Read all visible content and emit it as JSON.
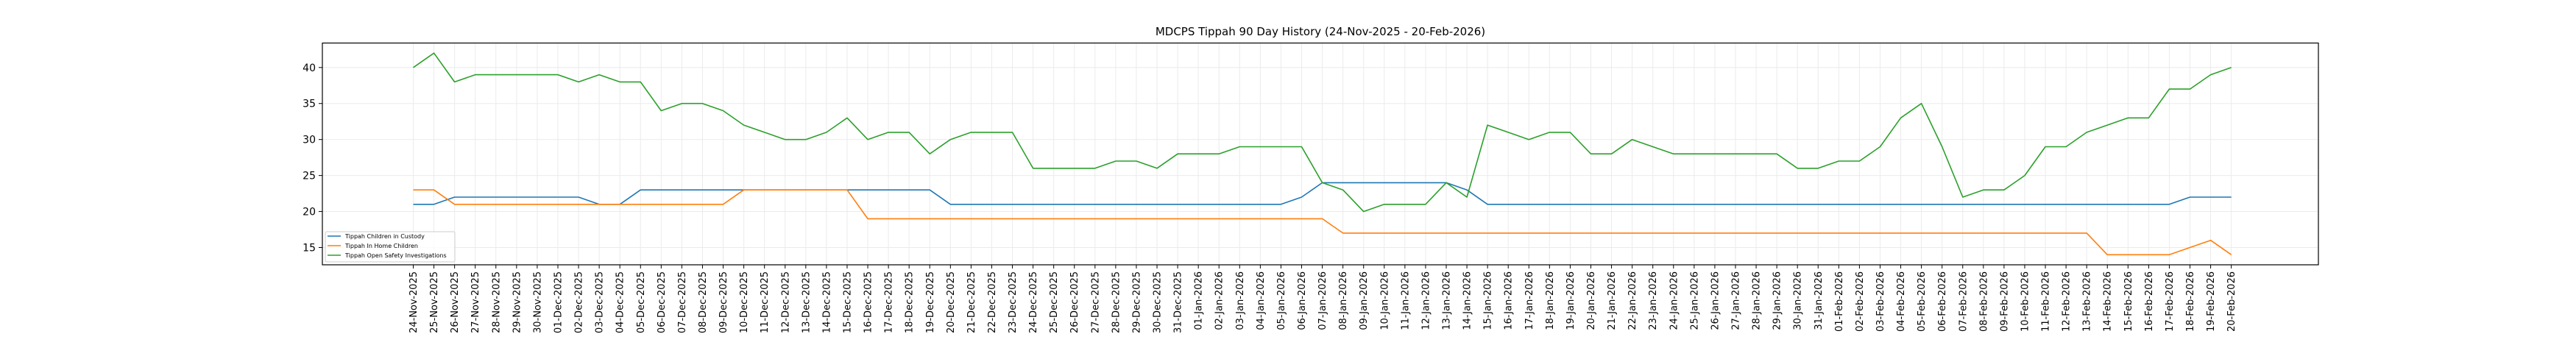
{
  "chart_data": {
    "type": "line",
    "title": "MDCPS Tippah 90 Day History (24-Nov-2025 - 20-Feb-2026)",
    "xlabel": "",
    "ylabel": "",
    "ylim": [
      12.6,
      43.4
    ],
    "yticks": [
      15,
      20,
      25,
      30,
      35,
      40
    ],
    "grid": true,
    "legend_position": "lower-left",
    "x": [
      "24-Nov-2025",
      "25-Nov-2025",
      "26-Nov-2025",
      "27-Nov-2025",
      "28-Nov-2025",
      "29-Nov-2025",
      "30-Nov-2025",
      "01-Dec-2025",
      "02-Dec-2025",
      "03-Dec-2025",
      "04-Dec-2025",
      "05-Dec-2025",
      "06-Dec-2025",
      "07-Dec-2025",
      "08-Dec-2025",
      "09-Dec-2025",
      "10-Dec-2025",
      "11-Dec-2025",
      "12-Dec-2025",
      "13-Dec-2025",
      "14-Dec-2025",
      "15-Dec-2025",
      "16-Dec-2025",
      "17-Dec-2025",
      "18-Dec-2025",
      "19-Dec-2025",
      "20-Dec-2025",
      "21-Dec-2025",
      "22-Dec-2025",
      "23-Dec-2025",
      "24-Dec-2025",
      "25-Dec-2025",
      "26-Dec-2025",
      "27-Dec-2025",
      "28-Dec-2025",
      "29-Dec-2025",
      "30-Dec-2025",
      "31-Dec-2025",
      "01-Jan-2026",
      "02-Jan-2026",
      "03-Jan-2026",
      "04-Jan-2026",
      "05-Jan-2026",
      "06-Jan-2026",
      "07-Jan-2026",
      "08-Jan-2026",
      "09-Jan-2026",
      "10-Jan-2026",
      "11-Jan-2026",
      "12-Jan-2026",
      "13-Jan-2026",
      "14-Jan-2026",
      "15-Jan-2026",
      "16-Jan-2026",
      "17-Jan-2026",
      "18-Jan-2026",
      "19-Jan-2026",
      "20-Jan-2026",
      "21-Jan-2026",
      "22-Jan-2026",
      "23-Jan-2026",
      "24-Jan-2026",
      "25-Jan-2026",
      "26-Jan-2026",
      "27-Jan-2026",
      "28-Jan-2026",
      "29-Jan-2026",
      "30-Jan-2026",
      "31-Jan-2026",
      "01-Feb-2026",
      "02-Feb-2026",
      "03-Feb-2026",
      "04-Feb-2026",
      "05-Feb-2026",
      "06-Feb-2026",
      "07-Feb-2026",
      "08-Feb-2026",
      "09-Feb-2026",
      "10-Feb-2026",
      "11-Feb-2026",
      "12-Feb-2026",
      "13-Feb-2026",
      "14-Feb-2026",
      "15-Feb-2026",
      "16-Feb-2026",
      "17-Feb-2026",
      "18-Feb-2026",
      "19-Feb-2026",
      "20-Feb-2026"
    ],
    "series": [
      {
        "name": "Tippah Children in Custody",
        "color": "#1f77b4",
        "values": [
          21,
          21,
          22,
          22,
          22,
          22,
          22,
          22,
          22,
          21,
          21,
          23,
          23,
          23,
          23,
          23,
          23,
          23,
          23,
          23,
          23,
          23,
          23,
          23,
          23,
          23,
          21,
          21,
          21,
          21,
          21,
          21,
          21,
          21,
          21,
          21,
          21,
          21,
          21,
          21,
          21,
          21,
          21,
          22,
          24,
          24,
          24,
          24,
          24,
          24,
          24,
          23,
          21,
          21,
          21,
          21,
          21,
          21,
          21,
          21,
          21,
          21,
          21,
          21,
          21,
          21,
          21,
          21,
          21,
          21,
          21,
          21,
          21,
          21,
          21,
          21,
          21,
          21,
          21,
          21,
          21,
          21,
          21,
          21,
          21,
          21,
          22,
          22,
          22
        ]
      },
      {
        "name": "Tippah In Home Children",
        "color": "#ff7f0e",
        "values": [
          23,
          23,
          21,
          21,
          21,
          21,
          21,
          21,
          21,
          21,
          21,
          21,
          21,
          21,
          21,
          21,
          23,
          23,
          23,
          23,
          23,
          23,
          19,
          19,
          19,
          19,
          19,
          19,
          19,
          19,
          19,
          19,
          19,
          19,
          19,
          19,
          19,
          19,
          19,
          19,
          19,
          19,
          19,
          19,
          19,
          17,
          17,
          17,
          17,
          17,
          17,
          17,
          17,
          17,
          17,
          17,
          17,
          17,
          17,
          17,
          17,
          17,
          17,
          17,
          17,
          17,
          17,
          17,
          17,
          17,
          17,
          17,
          17,
          17,
          17,
          17,
          17,
          17,
          17,
          17,
          17,
          17,
          14,
          14,
          14,
          14,
          15,
          16,
          14
        ]
      },
      {
        "name": "Tippah Open Safety Investigations",
        "color": "#2ca02c",
        "values": [
          40,
          42,
          38,
          39,
          39,
          39,
          39,
          39,
          38,
          39,
          38,
          38,
          34,
          35,
          35,
          34,
          32,
          31,
          30,
          30,
          31,
          33,
          30,
          31,
          31,
          28,
          30,
          31,
          31,
          31,
          26,
          26,
          26,
          26,
          27,
          27,
          26,
          28,
          28,
          28,
          29,
          29,
          29,
          29,
          24,
          23,
          20,
          21,
          21,
          21,
          24,
          22,
          32,
          31,
          30,
          31,
          31,
          28,
          28,
          30,
          29,
          28,
          28,
          28,
          28,
          28,
          28,
          26,
          26,
          27,
          27,
          29,
          33,
          35,
          29,
          22,
          23,
          23,
          25,
          29,
          29,
          31,
          32,
          33,
          33,
          37,
          37,
          39,
          40
        ]
      }
    ]
  }
}
